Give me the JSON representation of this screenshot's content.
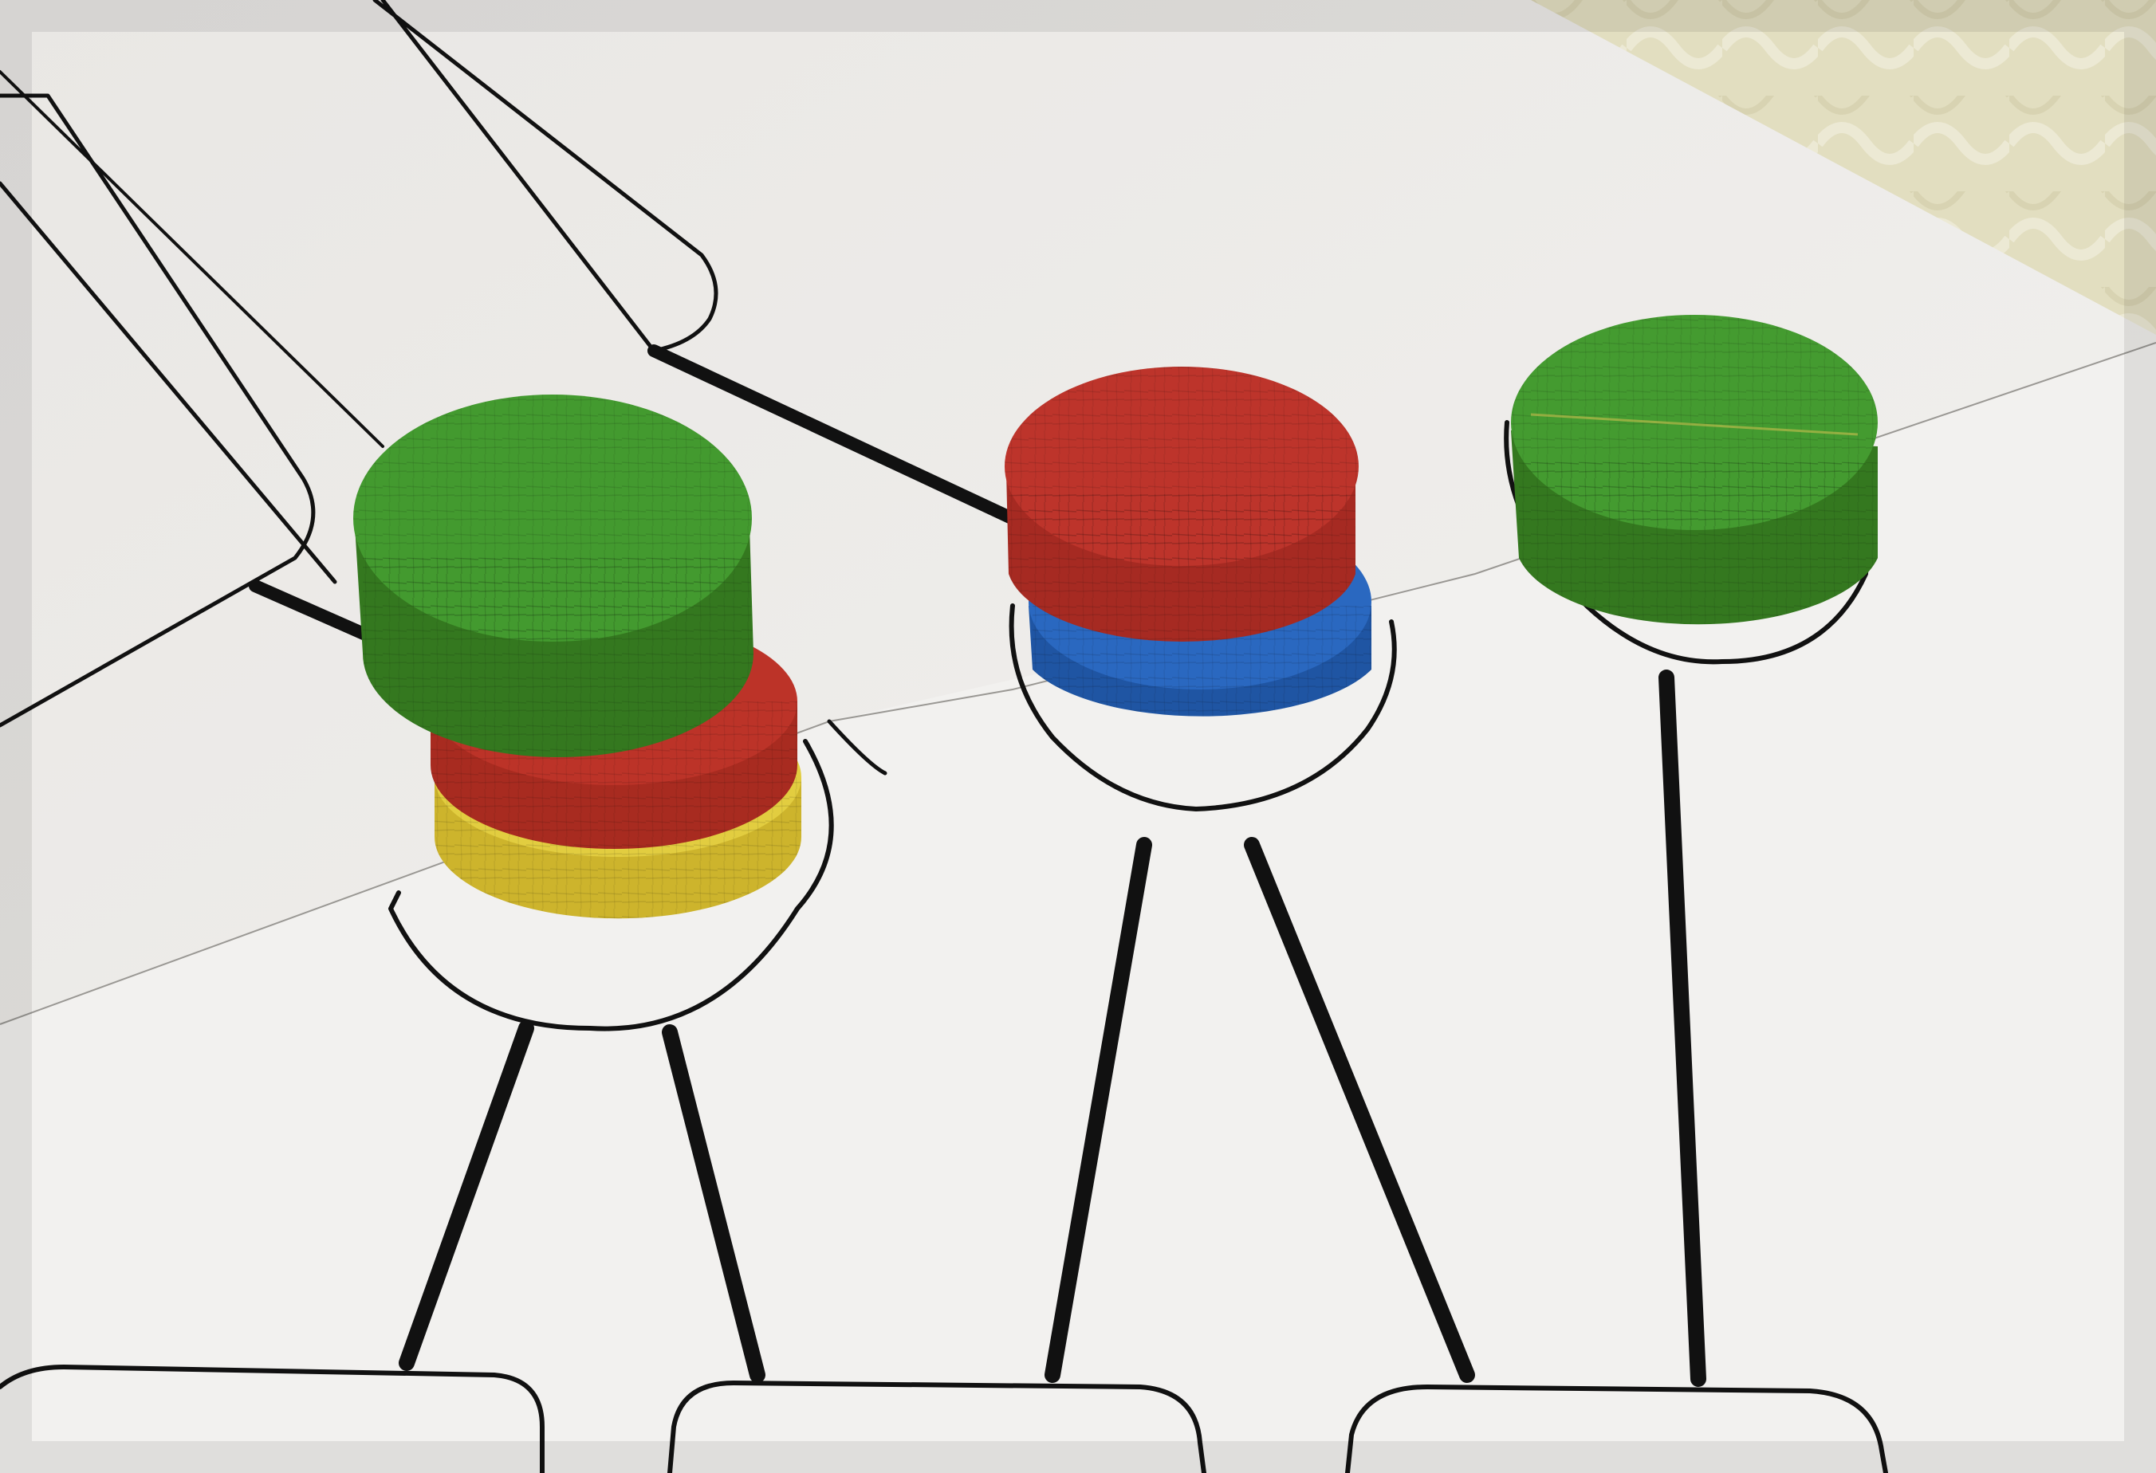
{
  "scene": {
    "description_colors": {
      "tablecloth": "#e3dfc0",
      "board": "#eeecea",
      "line": "#111111"
    }
  },
  "pieces": [
    {
      "id": "stack-left-top",
      "color": "#3f8e2c",
      "color_name": "green"
    },
    {
      "id": "stack-left-middle",
      "color": "#b83226",
      "color_name": "red"
    },
    {
      "id": "stack-left-bottom",
      "color": "#e0cc3e",
      "color_name": "yellow"
    },
    {
      "id": "stack-center-top",
      "color": "#b5302a",
      "color_name": "red"
    },
    {
      "id": "stack-center-bottom",
      "color": "#2563b8",
      "color_name": "blue"
    },
    {
      "id": "single-right",
      "color": "#3f8e2c",
      "color_name": "green"
    }
  ],
  "counts": {
    "stack_left_pieces": 3,
    "stack_center_pieces": 2,
    "single_right_pieces": 1
  }
}
